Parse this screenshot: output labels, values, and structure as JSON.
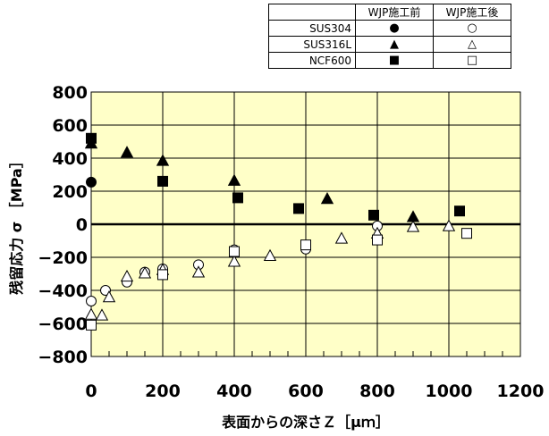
{
  "legend": {
    "col_headers": [
      "WJP施工前",
      "WJP施工後"
    ],
    "rows": [
      {
        "name": "SUS304",
        "before": "●",
        "after": "○"
      },
      {
        "name": "SUS316L",
        "before": "▲",
        "after": "△"
      },
      {
        "name": "NCF600",
        "before": "■",
        "after": "□"
      }
    ]
  },
  "chart_data": {
    "type": "scatter",
    "xlabel": "表面からの深さＺ［μｍ］",
    "ylabel": "残留応力 σ ［MPa］",
    "xlim": [
      0,
      1200
    ],
    "ylim": [
      -800,
      800
    ],
    "xticks": [
      "0",
      "200",
      "400",
      "600",
      "800",
      "1000",
      "1200"
    ],
    "yticks": [
      "800",
      "600",
      "400",
      "200",
      "0",
      "-200",
      "-400",
      "-600",
      "-800"
    ],
    "plot_background": "#FFFFC8",
    "grid": true,
    "series": [
      {
        "name": "SUS304 WJP施工前",
        "marker": "circle",
        "filled": true,
        "x": [
          0
        ],
        "y": [
          255
        ]
      },
      {
        "name": "SUS316L WJP施工前",
        "marker": "triangle",
        "filled": true,
        "x": [
          0,
          100,
          200,
          400,
          660,
          900
        ],
        "y": [
          490,
          435,
          385,
          265,
          155,
          45
        ]
      },
      {
        "name": "NCF600 WJP施工前",
        "marker": "square",
        "filled": true,
        "x": [
          0,
          200,
          410,
          580,
          790,
          1030
        ],
        "y": [
          520,
          260,
          160,
          95,
          55,
          80
        ]
      },
      {
        "name": "SUS304 WJP施工後",
        "marker": "circle",
        "filled": false,
        "x": [
          0,
          40,
          100,
          150,
          200,
          300,
          400,
          600,
          800
        ],
        "y": [
          -465,
          -400,
          -350,
          -290,
          -270,
          -245,
          -155,
          -150,
          -10
        ]
      },
      {
        "name": "SUS316L WJP施工後",
        "marker": "triangle",
        "filled": false,
        "x": [
          0,
          30,
          50,
          100,
          150,
          200,
          300,
          400,
          500,
          700,
          800,
          900,
          1000
        ],
        "y": [
          -545,
          -550,
          -440,
          -315,
          -295,
          -275,
          -290,
          -225,
          -190,
          -85,
          -55,
          -15,
          -10
        ]
      },
      {
        "name": "NCF600 WJP施工後",
        "marker": "square",
        "filled": false,
        "x": [
          0,
          200,
          400,
          600,
          800,
          1050
        ],
        "y": [
          -610,
          -305,
          -165,
          -125,
          -95,
          -55
        ]
      }
    ]
  }
}
